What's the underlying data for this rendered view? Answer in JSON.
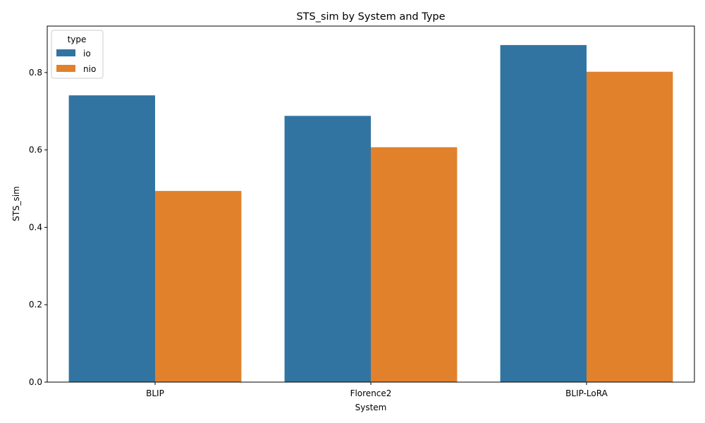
{
  "chart_data": {
    "type": "bar",
    "title": "STS_sim by System and Type",
    "xlabel": "System",
    "ylabel": "STS_sim",
    "categories": [
      "BLIP",
      "Florence2",
      "BLIP-LoRA"
    ],
    "series": [
      {
        "name": "io",
        "values": [
          0.741,
          0.688,
          0.871
        ],
        "color": "#3274a1"
      },
      {
        "name": "nio",
        "values": [
          0.494,
          0.607,
          0.802
        ],
        "color": "#e1812c"
      }
    ],
    "ylim": [
      0,
      0.92
    ],
    "yticks": [
      "0.0",
      "0.2",
      "0.4",
      "0.6",
      "0.8"
    ],
    "ytick_values": [
      0,
      0.2,
      0.4,
      0.6,
      0.8
    ],
    "legend": {
      "title": "type",
      "placement": "top-left"
    },
    "grid": false
  }
}
